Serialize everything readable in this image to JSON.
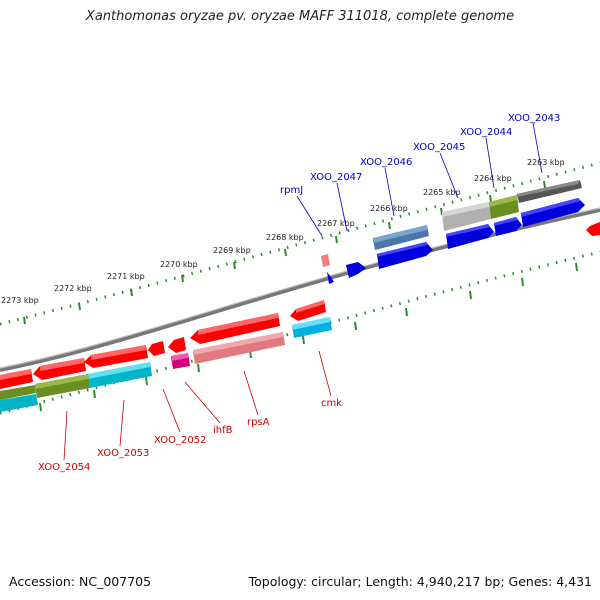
{
  "title": "Xanthomonas oryzae pv. oryzae MAFF 311018, complete genome",
  "footer": {
    "accession": "Accession: NC_007705",
    "summary": "Topology: circular; Length: 4,940,217 bp; Genes: 4,431"
  },
  "colors": {
    "forward_label": "#0000cc",
    "reverse_label": "#cc0000",
    "tick": "#2e8b2e",
    "backbone": "#888888"
  },
  "kbp_labels": [
    "2263 kbp",
    "2264 kbp",
    "2265 kbp",
    "2266 kbp",
    "2267 kbp",
    "2268 kbp",
    "2269 kbp",
    "2270 kbp",
    "2271 kbp",
    "2272 kbp",
    "2273 kbp"
  ],
  "forward_gene_labels": [
    "rpmJ",
    "XOO_2047",
    "XOO_2046",
    "XOO_2045",
    "XOO_2044",
    "XOO_2043"
  ],
  "reverse_gene_labels": [
    "cmk",
    "rpsA",
    "ihfB",
    "XOO_2052",
    "XOO_2053",
    "XOO_2054"
  ]
}
